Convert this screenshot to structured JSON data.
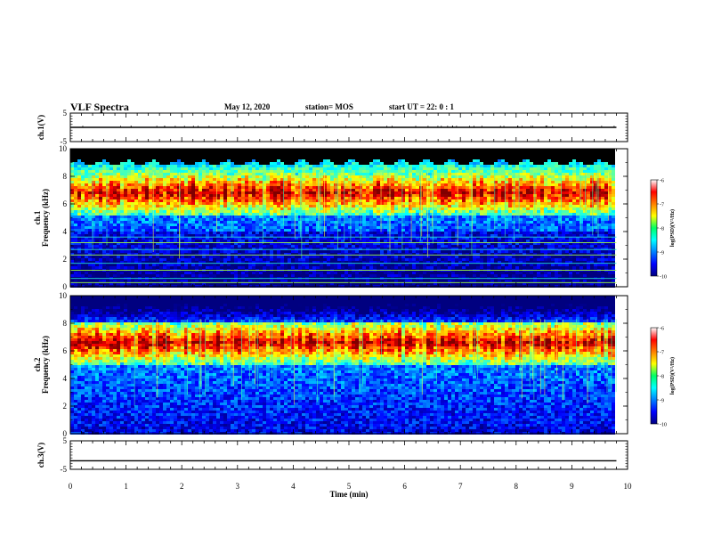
{
  "header": {
    "title": "VLF Spectra",
    "date": "May 12, 2020",
    "station": "station= MOS",
    "start": "start  UT =  22: 0  : 1"
  },
  "chart_data": [
    {
      "type": "line",
      "panel": "ch1_voltage",
      "ylabel": "ch.1(V)",
      "yticks": [
        "5",
        "-5"
      ],
      "ylim": [
        -5,
        5
      ],
      "xlim": [
        0,
        10
      ],
      "x": [
        0,
        9.8
      ],
      "values": [
        0.0,
        0.0
      ],
      "color": "#000000"
    },
    {
      "type": "heatmap",
      "panel": "ch1_spectrogram",
      "ylabel": "ch.1\nFrequency (kHz)",
      "yticks": [
        "0",
        "2",
        "4",
        "6",
        "8",
        "10"
      ],
      "ylim": [
        0,
        10
      ],
      "xlim": [
        0,
        10
      ],
      "data_end_min": 9.8,
      "intense_band_khz": [
        5.2,
        8.2
      ],
      "peak_khz": 6.8,
      "saturated_above_khz": 9.0,
      "horizontal_lines_khz": [
        0.3,
        0.6,
        1.2,
        1.7,
        2.3,
        2.7,
        3.2,
        3.6
      ],
      "colorbar": {
        "label": "log(PSD)(V²/Hz)",
        "ticks": [
          "-6",
          "-7",
          "-8",
          "-9",
          "-10"
        ],
        "range": [
          -10,
          -6
        ]
      }
    },
    {
      "type": "heatmap",
      "panel": "ch2_spectrogram",
      "ylabel": "ch.2\nFrequency (kHz)",
      "yticks": [
        "0",
        "2",
        "4",
        "6",
        "8",
        "10"
      ],
      "ylim": [
        0,
        10
      ],
      "xlim": [
        0,
        10
      ],
      "data_end_min": 9.8,
      "intense_band_khz": [
        5.0,
        8.0
      ],
      "peak_khz": 6.6,
      "colorbar": {
        "label": "log(PSD)(V²/Hz)",
        "ticks": [
          "-6",
          "-7",
          "-8",
          "-9",
          "-10"
        ],
        "range": [
          -10,
          -6
        ]
      }
    },
    {
      "type": "line",
      "panel": "ch3_voltage",
      "ylabel": "ch.3(V)",
      "yticks": [
        "5",
        "-5"
      ],
      "ylim": [
        -5,
        5
      ],
      "xlim": [
        0,
        10
      ],
      "x": [
        0,
        9.8
      ],
      "values": [
        -2.0,
        -2.0
      ],
      "color": "#000000"
    }
  ],
  "x_axis": {
    "label": "Time (min)",
    "ticks": [
      "0",
      "1",
      "2",
      "3",
      "4",
      "5",
      "6",
      "7",
      "8",
      "9",
      "10"
    ]
  }
}
